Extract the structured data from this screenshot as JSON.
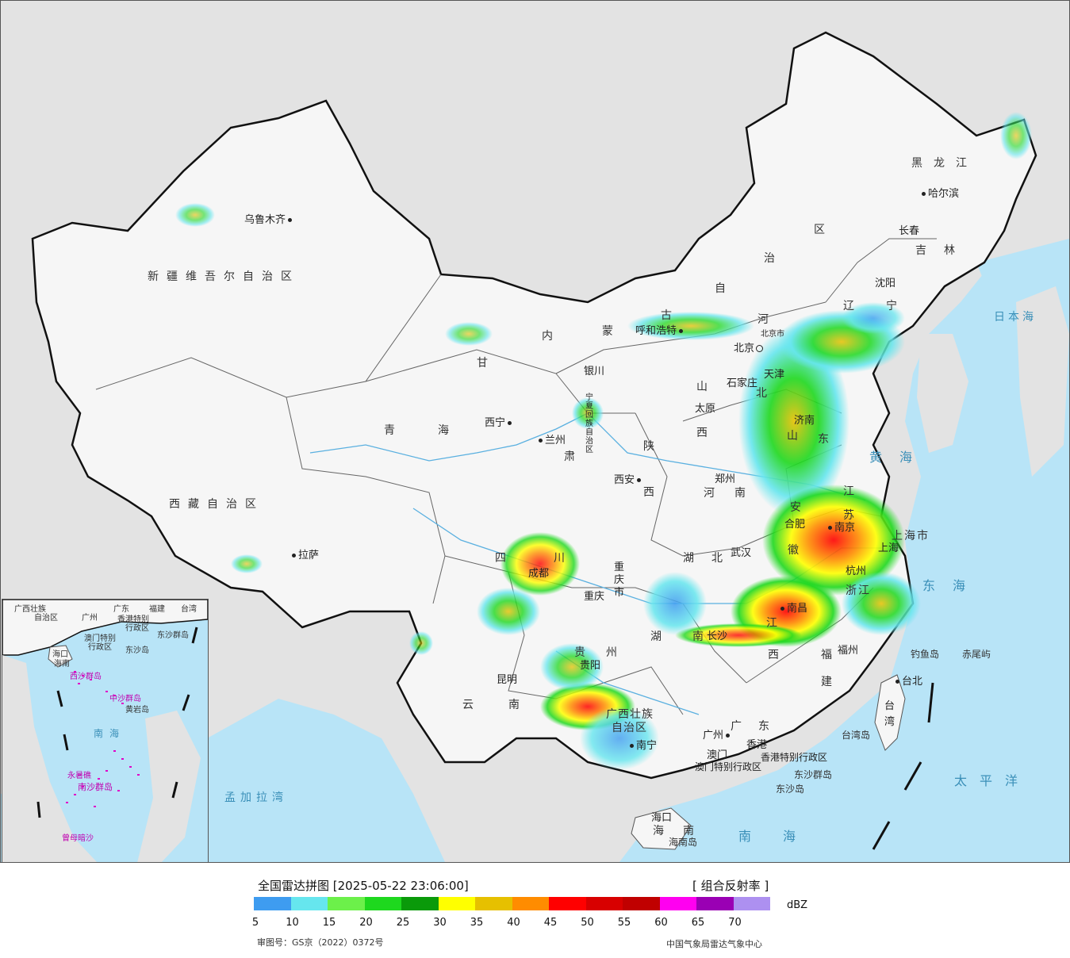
{
  "map": {
    "provinces": [
      {
        "id": "xinjiang",
        "label": "新疆维吾尔自治区"
      },
      {
        "id": "xizang",
        "label": "西藏自治区"
      },
      {
        "id": "qinghai",
        "label": "青海"
      },
      {
        "id": "gansu",
        "label": "甘"
      },
      {
        "id": "gansu2",
        "label": "肃"
      },
      {
        "id": "neimenggu1",
        "label": "内"
      },
      {
        "id": "neimenggu2",
        "label": "蒙"
      },
      {
        "id": "neimenggu3",
        "label": "古"
      },
      {
        "id": "neimenggu4",
        "label": "自"
      },
      {
        "id": "neimenggu5",
        "label": "治"
      },
      {
        "id": "neimenggu6",
        "label": "区"
      },
      {
        "id": "heilongjiang",
        "label": "黑龙江"
      },
      {
        "id": "jilin",
        "label": "吉林"
      },
      {
        "id": "liaoning",
        "label": "辽宁"
      },
      {
        "id": "hebei1",
        "label": "河"
      },
      {
        "id": "hebei2",
        "label": "北"
      },
      {
        "id": "shanxi1",
        "label": "山"
      },
      {
        "id": "shanxi2",
        "label": "西"
      },
      {
        "id": "shaanxi1",
        "label": "陕"
      },
      {
        "id": "shaanxi2",
        "label": "西"
      },
      {
        "id": "ningxia",
        "label": "宁夏回族自治区"
      },
      {
        "id": "henan1",
        "label": "河"
      },
      {
        "id": "henan2",
        "label": "南"
      },
      {
        "id": "shandong1",
        "label": "山"
      },
      {
        "id": "shandong2",
        "label": "东"
      },
      {
        "id": "jiangsu1",
        "label": "江"
      },
      {
        "id": "jiangsu2",
        "label": "苏"
      },
      {
        "id": "anhui1",
        "label": "安"
      },
      {
        "id": "anhui2",
        "label": "徽"
      },
      {
        "id": "shanghai",
        "label": "上海市"
      },
      {
        "id": "zhejiang",
        "label": "浙江"
      },
      {
        "id": "hubei",
        "label": "湖北"
      },
      {
        "id": "hunan1",
        "label": "湖"
      },
      {
        "id": "hunan2",
        "label": "南"
      },
      {
        "id": "jiangxi1",
        "label": "江"
      },
      {
        "id": "jiangxi2",
        "label": "西"
      },
      {
        "id": "fujian1",
        "label": "福"
      },
      {
        "id": "fujian2",
        "label": "建"
      },
      {
        "id": "sichuan1",
        "label": "四"
      },
      {
        "id": "sichuan2",
        "label": "川"
      },
      {
        "id": "chongqing",
        "label": "重庆市"
      },
      {
        "id": "guizhou1",
        "label": "贵"
      },
      {
        "id": "guizhou2",
        "label": "州"
      },
      {
        "id": "yunnan1",
        "label": "云"
      },
      {
        "id": "yunnan2",
        "label": "南"
      },
      {
        "id": "guangxi1",
        "label": "广西壮族"
      },
      {
        "id": "guangxi2",
        "label": "自治区"
      },
      {
        "id": "guangdong1",
        "label": "广"
      },
      {
        "id": "guangdong2",
        "label": "东"
      },
      {
        "id": "hainan1",
        "label": "海"
      },
      {
        "id": "hainan2",
        "label": "南"
      },
      {
        "id": "taiwan",
        "label": "台湾"
      },
      {
        "id": "hk",
        "label": "香港特别行政区"
      },
      {
        "id": "macau",
        "label": "澳门特别行政区"
      }
    ],
    "cities": [
      {
        "id": "urumqi",
        "label": "乌鲁木齐"
      },
      {
        "id": "lhasa",
        "label": "拉萨"
      },
      {
        "id": "xining",
        "label": "西宁"
      },
      {
        "id": "lanzhou",
        "label": "兰州"
      },
      {
        "id": "yinchuan",
        "label": "银川"
      },
      {
        "id": "hohhot",
        "label": "呼和浩特"
      },
      {
        "id": "beijing",
        "label": "北京"
      },
      {
        "id": "beijing_city",
        "label": "北京市"
      },
      {
        "id": "tianjin",
        "label": "天津"
      },
      {
        "id": "shijiazhuang",
        "label": "石家庄"
      },
      {
        "id": "taiyuan",
        "label": "太原"
      },
      {
        "id": "jinan",
        "label": "济南"
      },
      {
        "id": "zhengzhou",
        "label": "郑州"
      },
      {
        "id": "xian",
        "label": "西安"
      },
      {
        "id": "hefei",
        "label": "合肥"
      },
      {
        "id": "nanjing",
        "label": "南京"
      },
      {
        "id": "shanghai_city",
        "label": "上海"
      },
      {
        "id": "hangzhou",
        "label": "杭州"
      },
      {
        "id": "wuhan",
        "label": "武汉"
      },
      {
        "id": "changsha",
        "label": "长沙"
      },
      {
        "id": "nanchang",
        "label": "南昌"
      },
      {
        "id": "fuzhou",
        "label": "福州"
      },
      {
        "id": "taipei",
        "label": "台北"
      },
      {
        "id": "chengdu",
        "label": "成都"
      },
      {
        "id": "chongqing_city",
        "label": "重庆"
      },
      {
        "id": "guiyang",
        "label": "贵阳"
      },
      {
        "id": "kunming",
        "label": "昆明"
      },
      {
        "id": "nanning",
        "label": "南宁"
      },
      {
        "id": "guangzhou",
        "label": "广州"
      },
      {
        "id": "hongkong",
        "label": "香港"
      },
      {
        "id": "macau_city",
        "label": "澳门"
      },
      {
        "id": "haikou",
        "label": "海口"
      },
      {
        "id": "shenyang",
        "label": "沈阳"
      },
      {
        "id": "changchun",
        "label": "长春"
      },
      {
        "id": "harbin",
        "label": "哈尔滨"
      }
    ],
    "seas": [
      {
        "id": "japan_sea",
        "label": "日本海"
      },
      {
        "id": "yellow_sea",
        "label": "黄海"
      },
      {
        "id": "east_sea",
        "label": "东海"
      },
      {
        "id": "pacific",
        "label": "太平洋"
      },
      {
        "id": "south_sea",
        "label": "南海"
      },
      {
        "id": "bengal",
        "label": "孟加拉湾"
      }
    ],
    "islands": [
      {
        "id": "diaoyu",
        "label": "钓鱼岛"
      },
      {
        "id": "chiwei",
        "label": "赤尾屿"
      },
      {
        "id": "taiwan_island",
        "label": "台湾岛"
      },
      {
        "id": "dongsha_group",
        "label": "东沙群岛"
      },
      {
        "id": "dongsha",
        "label": "东沙岛"
      },
      {
        "id": "hainan_island",
        "label": "海南岛"
      }
    ]
  },
  "inset": {
    "labels": [
      {
        "id": "i_guangxi",
        "label": "广西壮族"
      },
      {
        "id": "i_guangxi2",
        "label": "自治区"
      },
      {
        "id": "i_guangdong",
        "label": "广东"
      },
      {
        "id": "i_fujian",
        "label": "福建"
      },
      {
        "id": "i_taiwan",
        "label": "台湾"
      },
      {
        "id": "i_guangzhou",
        "label": "广州"
      },
      {
        "id": "i_hk",
        "label": "香港特别"
      },
      {
        "id": "i_hk2",
        "label": "行政区"
      },
      {
        "id": "i_macau",
        "label": "澳门特别"
      },
      {
        "id": "i_macau2",
        "label": "行政区"
      },
      {
        "id": "i_dongsha",
        "label": "东沙群岛"
      },
      {
        "id": "i_dongsha2",
        "label": "东沙岛"
      },
      {
        "id": "i_haikou",
        "label": "海口"
      },
      {
        "id": "i_hainan",
        "label": "海南"
      },
      {
        "id": "i_xisha",
        "label": "西沙群岛"
      },
      {
        "id": "i_zhongsha",
        "label": "中沙群岛"
      },
      {
        "id": "i_huangyan",
        "label": "黄岩岛"
      },
      {
        "id": "i_nansha",
        "label": "南沙群岛"
      },
      {
        "id": "i_yongshu",
        "label": "永暑礁"
      },
      {
        "id": "i_zengmu",
        "label": "曾母暗沙"
      }
    ],
    "sea": "南海"
  },
  "legend": {
    "title": "全国雷达拼图 [2025-05-22 23:06:00]",
    "product": "[ 组合反射率 ]",
    "unit": "dBZ",
    "colors": [
      "#3e9cf0",
      "#66e6ee",
      "#6cf04a",
      "#1ed81e",
      "#0a9a0a",
      "#ffff00",
      "#e6c000",
      "#ff8c00",
      "#ff0000",
      "#d80000",
      "#c00000",
      "#ff00f0",
      "#9a00b4",
      "#ad90f0"
    ],
    "ticks": [
      "5",
      "10",
      "15",
      "20",
      "25",
      "30",
      "35",
      "40",
      "45",
      "50",
      "55",
      "60",
      "65",
      "70"
    ]
  },
  "footer": {
    "approval": "审图号：GS京（2022）0372号",
    "credit": "中国气象局雷达气象中心"
  }
}
